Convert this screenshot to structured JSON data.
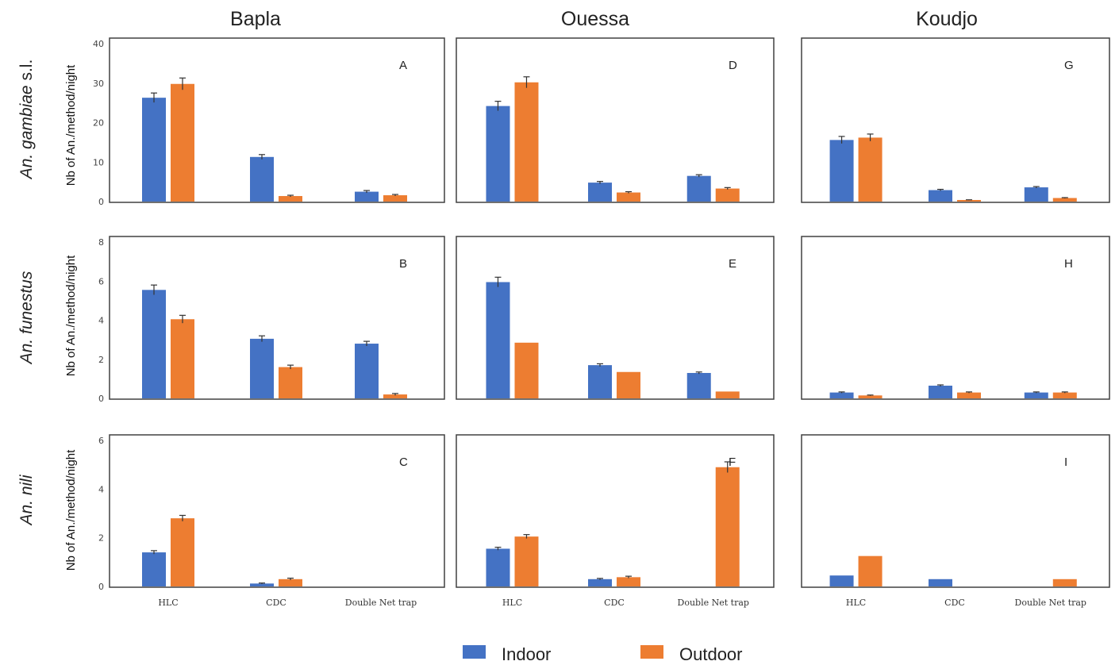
{
  "columns": [
    "Bapla",
    "Ouessa",
    "Koudjo"
  ],
  "rows": [
    {
      "species_italic": "An. gambiae",
      "suffix": " s.l."
    },
    {
      "species_italic": "An. funestus",
      "suffix": ""
    },
    {
      "species_italic": "An. nili",
      "suffix": ""
    }
  ],
  "ylabel": "Nb of An./method/night",
  "categories": [
    "HLC",
    "CDC",
    "Double Net trap"
  ],
  "legend": {
    "indoor": "Indoor",
    "outdoor": "Outdoor"
  },
  "colors": {
    "indoor": "#4472C4",
    "outdoor": "#ED7D31",
    "error": "#333333"
  },
  "chart_data": [
    {
      "type": "bar",
      "panel": "A",
      "row": 0,
      "col": 0,
      "ylim": [
        0,
        40
      ],
      "yticks": [
        0,
        10,
        20,
        30,
        40
      ],
      "categories": [
        "HLC",
        "CDC",
        "Double Net trap"
      ],
      "series": [
        {
          "name": "Indoor",
          "values": [
            26.3,
            11.3,
            2.5
          ],
          "errors": [
            1.2,
            0.6,
            0.3
          ]
        },
        {
          "name": "Outdoor",
          "values": [
            29.8,
            1.4,
            1.6
          ],
          "errors": [
            1.5,
            0.2,
            0.2
          ]
        }
      ]
    },
    {
      "type": "bar",
      "panel": "B",
      "row": 1,
      "col": 0,
      "ylim": [
        0,
        8
      ],
      "yticks": [
        0,
        2,
        4,
        6,
        8
      ],
      "categories": [
        "HLC",
        "CDC",
        "Double Net trap"
      ],
      "series": [
        {
          "name": "Indoor",
          "values": [
            5.55,
            3.05,
            2.8
          ],
          "errors": [
            0.25,
            0.15,
            0.12
          ]
        },
        {
          "name": "Outdoor",
          "values": [
            4.05,
            1.6,
            0.2
          ],
          "errors": [
            0.2,
            0.1,
            0.05
          ]
        }
      ]
    },
    {
      "type": "bar",
      "panel": "C",
      "row": 2,
      "col": 0,
      "ylim": [
        0,
        6
      ],
      "yticks": [
        0,
        2,
        4,
        6
      ],
      "categories": [
        "HLC",
        "CDC",
        "Double Net trap"
      ],
      "series": [
        {
          "name": "Indoor",
          "values": [
            1.4,
            0.12,
            0
          ],
          "errors": [
            0.07,
            0.02,
            0
          ]
        },
        {
          "name": "Outdoor",
          "values": [
            2.8,
            0.3,
            0
          ],
          "errors": [
            0.12,
            0.04,
            0
          ]
        }
      ]
    },
    {
      "type": "bar",
      "panel": "D",
      "row": 0,
      "col": 1,
      "ylim": [
        0,
        40
      ],
      "yticks": [],
      "categories": [
        "HLC",
        "CDC",
        "Double Net trap"
      ],
      "series": [
        {
          "name": "Indoor",
          "values": [
            24.2,
            4.8,
            6.5
          ],
          "errors": [
            1.2,
            0.3,
            0.3
          ]
        },
        {
          "name": "Outdoor",
          "values": [
            30.2,
            2.3,
            3.3
          ],
          "errors": [
            1.4,
            0.2,
            0.25
          ]
        }
      ]
    },
    {
      "type": "bar",
      "panel": "E",
      "row": 1,
      "col": 1,
      "ylim": [
        0,
        8
      ],
      "yticks": [],
      "categories": [
        "HLC",
        "CDC",
        "Double Net trap"
      ],
      "series": [
        {
          "name": "Indoor",
          "values": [
            5.95,
            1.7,
            1.3
          ],
          "errors": [
            0.25,
            0.07,
            0.05
          ]
        },
        {
          "name": "Outdoor",
          "values": [
            2.85,
            1.35,
            0.35
          ],
          "errors": [
            0,
            0,
            0
          ]
        }
      ]
    },
    {
      "type": "bar",
      "panel": "F",
      "row": 2,
      "col": 1,
      "ylim": [
        0,
        6
      ],
      "yticks": [],
      "categories": [
        "HLC",
        "CDC",
        "Double Net trap"
      ],
      "series": [
        {
          "name": "Indoor",
          "values": [
            1.55,
            0.3,
            0
          ],
          "errors": [
            0.06,
            0.03,
            0
          ]
        },
        {
          "name": "Outdoor",
          "values": [
            2.05,
            0.38,
            4.9
          ],
          "errors": [
            0.08,
            0.04,
            0.22
          ]
        }
      ]
    },
    {
      "type": "bar",
      "panel": "G",
      "row": 0,
      "col": 2,
      "ylim": [
        0,
        40
      ],
      "yticks": [],
      "categories": [
        "HLC",
        "CDC",
        "Double Net trap"
      ],
      "series": [
        {
          "name": "Indoor",
          "values": [
            15.6,
            2.9,
            3.6
          ],
          "errors": [
            0.9,
            0.2,
            0.2
          ]
        },
        {
          "name": "Outdoor",
          "values": [
            16.2,
            0.4,
            0.9
          ],
          "errors": [
            0.9,
            0.05,
            0.1
          ]
        }
      ]
    },
    {
      "type": "bar",
      "panel": "H",
      "row": 1,
      "col": 2,
      "ylim": [
        0,
        8
      ],
      "yticks": [],
      "categories": [
        "HLC",
        "CDC",
        "Double Net trap"
      ],
      "series": [
        {
          "name": "Indoor",
          "values": [
            0.3,
            0.65,
            0.3
          ],
          "errors": [
            0.03,
            0.04,
            0.03
          ]
        },
        {
          "name": "Outdoor",
          "values": [
            0.15,
            0.3,
            0.3
          ],
          "errors": [
            0.02,
            0.03,
            0.03
          ]
        }
      ]
    },
    {
      "type": "bar",
      "panel": "I",
      "row": 2,
      "col": 2,
      "ylim": [
        0,
        6
      ],
      "yticks": [],
      "categories": [
        "HLC",
        "CDC",
        "Double Net trap"
      ],
      "series": [
        {
          "name": "Indoor",
          "values": [
            0.45,
            0.3,
            0
          ],
          "errors": [
            0,
            0,
            0
          ]
        },
        {
          "name": "Outdoor",
          "values": [
            1.25,
            0,
            0.3
          ],
          "errors": [
            0,
            0,
            0
          ]
        }
      ]
    }
  ]
}
